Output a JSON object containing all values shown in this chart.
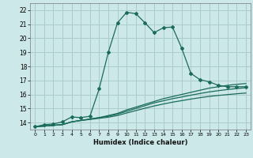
{
  "xlabel": "Humidex (Indice chaleur)",
  "ylabel": "",
  "background_color": "#cce8e8",
  "grid_color": "#aacccc",
  "line_color": "#1a6b5a",
  "xlim": [
    -0.5,
    23.5
  ],
  "ylim": [
    13.5,
    22.5
  ],
  "xticks": [
    0,
    1,
    2,
    3,
    4,
    5,
    6,
    7,
    8,
    9,
    10,
    11,
    12,
    13,
    14,
    15,
    16,
    17,
    18,
    19,
    20,
    21,
    22,
    23
  ],
  "yticks": [
    14,
    15,
    16,
    17,
    18,
    19,
    20,
    21,
    22
  ],
  "main_line_x": [
    0,
    1,
    2,
    3,
    4,
    5,
    6,
    7,
    8,
    9,
    10,
    11,
    12,
    13,
    14,
    15,
    16,
    17,
    18,
    19,
    20,
    21,
    22,
    23
  ],
  "main_line_y": [
    13.7,
    13.85,
    13.9,
    14.05,
    14.4,
    14.35,
    14.45,
    16.4,
    19.0,
    21.1,
    21.85,
    21.75,
    21.1,
    20.4,
    20.75,
    20.8,
    19.3,
    17.5,
    17.05,
    16.9,
    16.65,
    16.55,
    16.55,
    16.55
  ],
  "line2_x": [
    0,
    3,
    4,
    5,
    6,
    7,
    8,
    9,
    10,
    11,
    12,
    13,
    14,
    15,
    16,
    17,
    18,
    19,
    20,
    21,
    22,
    23
  ],
  "line2_y": [
    13.7,
    13.85,
    14.05,
    14.15,
    14.25,
    14.35,
    14.5,
    14.65,
    14.9,
    15.1,
    15.3,
    15.5,
    15.7,
    15.85,
    16.0,
    16.15,
    16.3,
    16.45,
    16.55,
    16.65,
    16.72,
    16.78
  ],
  "line3_x": [
    0,
    3,
    4,
    5,
    6,
    7,
    8,
    9,
    10,
    11,
    12,
    13,
    14,
    15,
    16,
    17,
    18,
    19,
    20,
    21,
    22,
    23
  ],
  "line3_y": [
    13.7,
    13.85,
    14.05,
    14.15,
    14.25,
    14.35,
    14.45,
    14.6,
    14.8,
    15.0,
    15.2,
    15.4,
    15.55,
    15.7,
    15.82,
    15.95,
    16.07,
    16.18,
    16.27,
    16.35,
    16.42,
    16.48
  ],
  "line4_x": [
    0,
    3,
    4,
    5,
    6,
    7,
    8,
    9,
    10,
    11,
    12,
    13,
    14,
    15,
    16,
    17,
    18,
    19,
    20,
    21,
    22,
    23
  ],
  "line4_y": [
    13.7,
    13.85,
    14.05,
    14.15,
    14.22,
    14.3,
    14.38,
    14.5,
    14.68,
    14.85,
    15.02,
    15.18,
    15.32,
    15.45,
    15.56,
    15.67,
    15.77,
    15.86,
    15.93,
    15.99,
    16.05,
    16.1
  ]
}
